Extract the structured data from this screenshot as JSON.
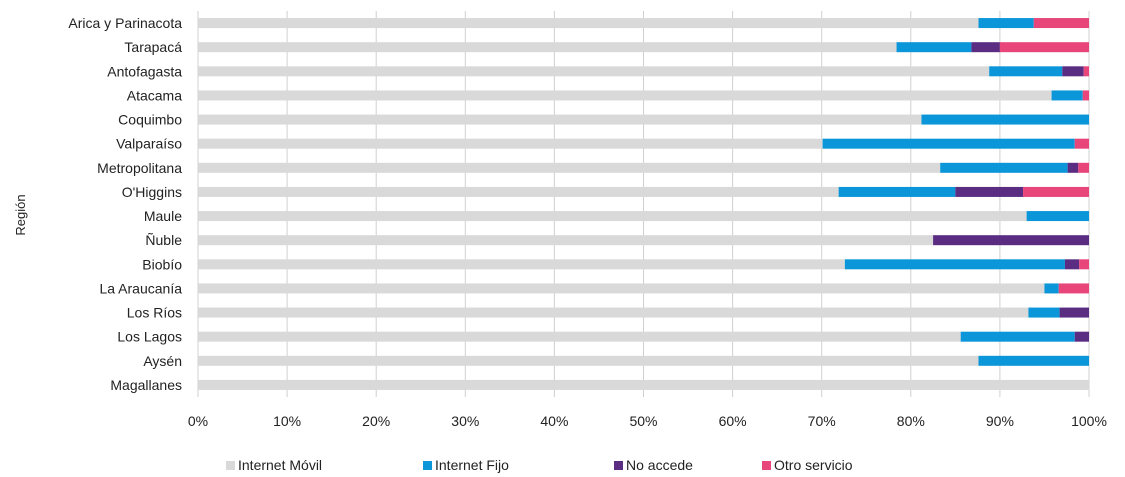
{
  "chart_data": {
    "type": "bar",
    "orientation": "horizontal",
    "stacked": "percent",
    "title": "",
    "xlabel": "",
    "ylabel": "Región",
    "xlim": [
      0,
      100
    ],
    "x_ticks": [
      "0%",
      "10%",
      "20%",
      "30%",
      "40%",
      "50%",
      "60%",
      "70%",
      "80%",
      "90%",
      "100%"
    ],
    "grid": "vertical",
    "legend": "bottom",
    "categories": [
      "Arica y Parinacota",
      "Tarapacá",
      "Antofagasta",
      "Atacama",
      "Coquimbo",
      "Valparaíso",
      "Metropolitana",
      "O'Higgins",
      "Maule",
      "Ñuble",
      "Biobío",
      "La Araucanía",
      "Los Ríos",
      "Los Lagos",
      "Aysén",
      "Magallanes"
    ],
    "series": [
      {
        "name": "Internet Móvil",
        "color": "#d9d9d9",
        "values": [
          87.6,
          78.4,
          88.8,
          95.8,
          81.2,
          70.1,
          83.3,
          71.9,
          93.0,
          82.5,
          72.6,
          95.0,
          93.2,
          85.6,
          87.6,
          100.0
        ]
      },
      {
        "name": "Internet Fijo",
        "color": "#0a96d8",
        "values": [
          6.2,
          8.4,
          8.2,
          3.5,
          18.8,
          28.3,
          14.3,
          13.1,
          7.0,
          0.0,
          24.7,
          1.6,
          3.5,
          12.8,
          12.4,
          0.0
        ]
      },
      {
        "name": "No accede",
        "color": "#5a2d82",
        "values": [
          0.0,
          3.2,
          2.4,
          0.0,
          0.0,
          0.0,
          1.2,
          7.6,
          0.0,
          17.5,
          1.6,
          0.0,
          3.3,
          1.6,
          0.0,
          0.0
        ]
      },
      {
        "name": "Otro servicio",
        "color": "#e8457a",
        "values": [
          6.2,
          10.0,
          0.6,
          0.7,
          0.0,
          1.6,
          1.2,
          7.4,
          0.0,
          0.0,
          1.1,
          3.4,
          0.0,
          0.0,
          0.0,
          0.0
        ]
      }
    ]
  }
}
